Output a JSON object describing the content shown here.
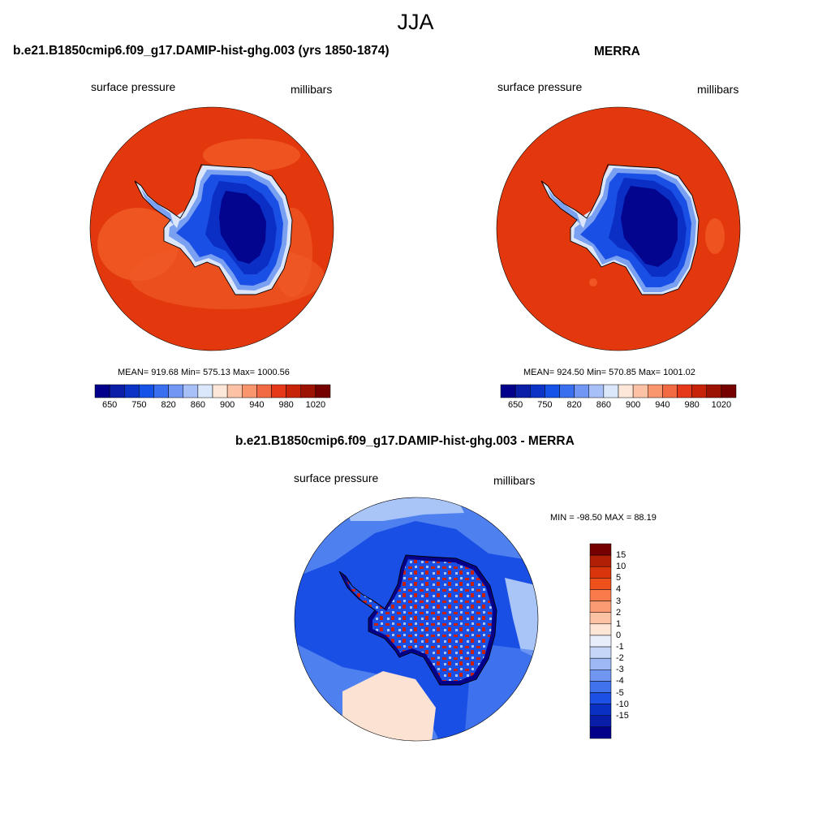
{
  "page": {
    "title": "JJA"
  },
  "panels": {
    "model": {
      "title": "b.e21.B1850cmip6.f09_g17.DAMIP-hist-ghg.003 (yrs 1850-1874)",
      "left_label": "surface pressure",
      "right_label": "millibars",
      "stats": "MEAN= 919.68  Min= 575.13  Max= 1000.56"
    },
    "obs": {
      "title": "MERRA",
      "left_label": "surface pressure",
      "right_label": "millibars",
      "stats": "MEAN= 924.50  Min= 570.85  Max= 1001.02"
    },
    "diff": {
      "title": "b.e21.B1850cmip6.f09_g17.DAMIP-hist-ghg.003 - MERRA",
      "left_label": "surface pressure",
      "right_label": "millibars",
      "stats": "MIN = -98.50 MAX =  88.19"
    }
  },
  "colorbars": {
    "abs": {
      "colors": [
        "#03008c",
        "#0a1ea8",
        "#0b34c6",
        "#1552e8",
        "#3a6ff0",
        "#7196f4",
        "#a7c0f7",
        "#dbe8fb",
        "#fde7d8",
        "#fcc2a5",
        "#f9966e",
        "#f26a43",
        "#e5391a",
        "#c72308",
        "#9c1303",
        "#750000"
      ],
      "tick_labels": [
        "650",
        "750",
        "820",
        "860",
        "900",
        "940",
        "980",
        "1020"
      ]
    },
    "diff": {
      "colors": [
        "#750000",
        "#b01f06",
        "#d9350d",
        "#f0501c",
        "#f97b4b",
        "#fb9b74",
        "#fcc2a4",
        "#fde6d6",
        "#e9eefb",
        "#c5d6f8",
        "#9db8f4",
        "#7196f1",
        "#3f72ec",
        "#1c4fe3",
        "#0a30c3",
        "#081ea8",
        "#03008c"
      ],
      "tick_labels": [
        "15",
        "10",
        "5",
        "4",
        "3",
        "2",
        "1",
        "0",
        "-1",
        "-2",
        "-3",
        "-4",
        "-5",
        "-10",
        "-15"
      ]
    }
  },
  "map_colors": {
    "ocean": "#e3380d",
    "ocean_light": "#f05a26",
    "ice_deep": "#04058e",
    "ice_mid": "#0b2fc4",
    "ice_light": "#1a4fe6",
    "edge_light": "#7aa0f2",
    "edge_white": "#dbe6fb",
    "diff_ocean": "#1a4fe6",
    "diff_ocean_light": "#4f80ef",
    "diff_ocean_pale": "#a9c4f6",
    "diff_warm": "#fbe2d2",
    "diff_red": "#c8200b",
    "diff_dark": "#03008c"
  }
}
